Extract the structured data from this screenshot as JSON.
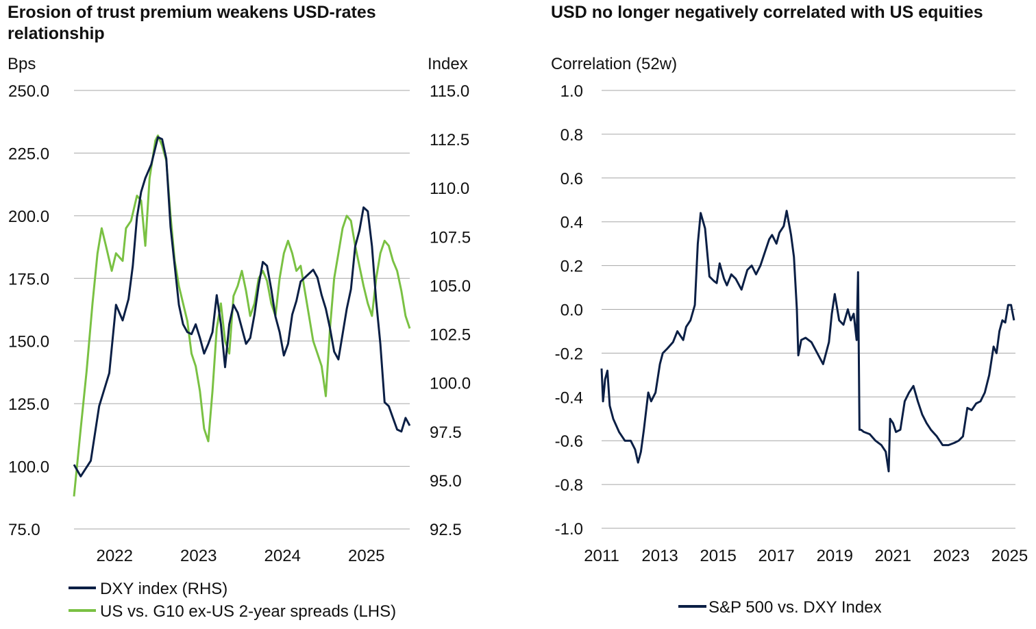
{
  "chart_data": [
    {
      "type": "line",
      "title": "Erosion of trust premium weakens USD-rates relationship",
      "left_axis_label": "Bps",
      "right_axis_label": "Index",
      "left_ylim": [
        75,
        250
      ],
      "right_ylim": [
        92.5,
        115
      ],
      "left_ticks": [
        "250.0",
        "225.0",
        "200.0",
        "175.0",
        "150.0",
        "125.0",
        "100.0",
        "75.0"
      ],
      "right_ticks": [
        "115.0",
        "112.5",
        "110.0",
        "107.5",
        "105.0",
        "102.5",
        "100.0",
        "97.5",
        "95.0",
        "92.5"
      ],
      "x_ticks": [
        "2022",
        "2023",
        "2024",
        "2025"
      ],
      "xlim": [
        2021.5,
        2025.5
      ],
      "grid": true,
      "legend_position": "bottom-left",
      "series": [
        {
          "name": "DXY index (RHS)",
          "axis": "right",
          "color": "#0b1f45",
          "x": [
            2021.5,
            2021.58,
            2021.7,
            2021.8,
            2021.92,
            2022.0,
            2022.08,
            2022.15,
            2022.2,
            2022.25,
            2022.3,
            2022.35,
            2022.42,
            2022.5,
            2022.55,
            2022.6,
            2022.65,
            2022.7,
            2022.75,
            2022.8,
            2022.85,
            2022.9,
            2022.95,
            2023.0,
            2023.05,
            2023.1,
            2023.15,
            2023.2,
            2023.25,
            2023.3,
            2023.35,
            2023.4,
            2023.45,
            2023.5,
            2023.55,
            2023.6,
            2023.65,
            2023.7,
            2023.75,
            2023.8,
            2023.85,
            2023.9,
            2023.95,
            2024.0,
            2024.05,
            2024.1,
            2024.15,
            2024.2,
            2024.25,
            2024.3,
            2024.35,
            2024.4,
            2024.45,
            2024.5,
            2024.55,
            2024.6,
            2024.65,
            2024.7,
            2024.75,
            2024.8,
            2024.85,
            2024.9,
            2024.95,
            2025.0,
            2025.05,
            2025.1,
            2025.15,
            2025.2,
            2025.25,
            2025.3,
            2025.35,
            2025.4,
            2025.45,
            2025.5
          ],
          "values": [
            95.8,
            95.2,
            96.0,
            98.8,
            100.5,
            104.0,
            103.2,
            104.3,
            106.0,
            108.5,
            109.8,
            110.5,
            111.2,
            112.6,
            112.5,
            111.5,
            108.0,
            106.0,
            104.0,
            103.0,
            102.6,
            102.5,
            103.0,
            102.3,
            101.5,
            102.0,
            102.6,
            104.5,
            103.0,
            100.8,
            103.0,
            104.0,
            103.6,
            102.8,
            102.0,
            102.3,
            103.5,
            105.0,
            106.2,
            106.0,
            104.8,
            103.4,
            102.6,
            101.4,
            102.0,
            103.5,
            104.2,
            105.2,
            105.4,
            105.6,
            105.8,
            105.4,
            104.5,
            103.8,
            102.8,
            101.6,
            101.2,
            102.5,
            103.8,
            104.8,
            107.0,
            107.8,
            109.0,
            108.8,
            107.0,
            104.2,
            102.0,
            99.0,
            98.8,
            98.2,
            97.6,
            97.5,
            98.2,
            97.8
          ]
        },
        {
          "name": "US vs. G10 ex-US 2-year spreads (LHS)",
          "axis": "left",
          "color": "#7ac143",
          "x": [
            2021.5,
            2021.58,
            2021.65,
            2021.72,
            2021.78,
            2021.83,
            2021.88,
            2021.95,
            2022.0,
            2022.08,
            2022.12,
            2022.18,
            2022.25,
            2022.3,
            2022.35,
            2022.4,
            2022.47,
            2022.5,
            2022.55,
            2022.6,
            2022.65,
            2022.7,
            2022.75,
            2022.8,
            2022.85,
            2022.9,
            2022.95,
            2023.0,
            2023.05,
            2023.1,
            2023.15,
            2023.2,
            2023.25,
            2023.3,
            2023.35,
            2023.4,
            2023.45,
            2023.5,
            2023.55,
            2023.6,
            2023.65,
            2023.7,
            2023.75,
            2023.8,
            2023.85,
            2023.9,
            2023.95,
            2024.0,
            2024.05,
            2024.1,
            2024.15,
            2024.2,
            2024.25,
            2024.3,
            2024.35,
            2024.4,
            2024.45,
            2024.5,
            2024.55,
            2024.6,
            2024.65,
            2024.7,
            2024.75,
            2024.8,
            2024.85,
            2024.9,
            2024.95,
            2025.0,
            2025.05,
            2025.1,
            2025.15,
            2025.2,
            2025.25,
            2025.3,
            2025.35,
            2025.4,
            2025.45,
            2025.5
          ],
          "values": [
            88,
            115,
            138,
            165,
            185,
            195,
            188,
            178,
            185,
            182,
            195,
            198,
            208,
            206,
            188,
            215,
            230,
            232,
            228,
            222,
            200,
            182,
            172,
            165,
            158,
            145,
            140,
            130,
            115,
            110,
            130,
            155,
            165,
            150,
            145,
            168,
            172,
            178,
            170,
            160,
            165,
            175,
            178,
            174,
            165,
            160,
            175,
            185,
            190,
            185,
            178,
            180,
            170,
            160,
            150,
            145,
            140,
            128,
            155,
            175,
            185,
            195,
            200,
            198,
            188,
            180,
            172,
            165,
            160,
            175,
            185,
            190,
            188,
            182,
            178,
            170,
            160,
            155
          ]
        }
      ]
    },
    {
      "type": "line",
      "title": "USD no longer negatively correlated with US equities",
      "ylabel": "Correlation (52w)",
      "ylim": [
        -1.0,
        1.0
      ],
      "y_ticks": [
        "1.0",
        "0.8",
        "0.6",
        "0.4",
        "0.2",
        "0.0",
        "-0.2",
        "-0.4",
        "-0.6",
        "-0.8",
        "-1.0"
      ],
      "x_ticks": [
        "2011",
        "2013",
        "2015",
        "2017",
        "2019",
        "2021",
        "2023",
        "2025"
      ],
      "xlim": [
        2011,
        2025.2
      ],
      "grid": true,
      "legend_position": "bottom-center",
      "series": [
        {
          "name": "S&P 500 vs. DXY Index",
          "color": "#0b1f45",
          "x": [
            2011.0,
            2011.05,
            2011.12,
            2011.2,
            2011.28,
            2011.4,
            2011.6,
            2011.8,
            2012.0,
            2012.15,
            2012.25,
            2012.35,
            2012.45,
            2012.6,
            2012.7,
            2012.85,
            2013.0,
            2013.1,
            2013.25,
            2013.45,
            2013.6,
            2013.8,
            2013.9,
            2014.05,
            2014.2,
            2014.3,
            2014.4,
            2014.55,
            2014.7,
            2014.85,
            2014.95,
            2015.05,
            2015.2,
            2015.3,
            2015.45,
            2015.6,
            2015.8,
            2016.0,
            2016.15,
            2016.3,
            2016.45,
            2016.6,
            2016.75,
            2016.85,
            2017.0,
            2017.1,
            2017.25,
            2017.35,
            2017.5,
            2017.6,
            2017.7,
            2017.75,
            2017.85,
            2018.0,
            2018.2,
            2018.4,
            2018.6,
            2018.8,
            2018.9,
            2019.0,
            2019.15,
            2019.3,
            2019.45,
            2019.55,
            2019.65,
            2019.75,
            2019.8,
            2019.85,
            2019.9,
            2020.0,
            2020.2,
            2020.4,
            2020.6,
            2020.75,
            2020.85,
            2020.9,
            2021.0,
            2021.1,
            2021.25,
            2021.4,
            2021.55,
            2021.7,
            2021.85,
            2022.0,
            2022.15,
            2022.3,
            2022.5,
            2022.7,
            2022.9,
            2023.1,
            2023.25,
            2023.4,
            2023.55,
            2023.7,
            2023.85,
            2024.0,
            2024.15,
            2024.3,
            2024.45,
            2024.55,
            2024.65,
            2024.75,
            2024.85,
            2024.95,
            2025.05,
            2025.15
          ],
          "values": [
            -0.27,
            -0.42,
            -0.32,
            -0.28,
            -0.44,
            -0.5,
            -0.56,
            -0.6,
            -0.6,
            -0.64,
            -0.7,
            -0.65,
            -0.55,
            -0.38,
            -0.42,
            -0.38,
            -0.25,
            -0.2,
            -0.18,
            -0.15,
            -0.1,
            -0.14,
            -0.08,
            -0.05,
            0.02,
            0.3,
            0.44,
            0.37,
            0.15,
            0.13,
            0.12,
            0.21,
            0.14,
            0.11,
            0.16,
            0.14,
            0.09,
            0.18,
            0.2,
            0.16,
            0.2,
            0.26,
            0.32,
            0.34,
            0.3,
            0.35,
            0.38,
            0.45,
            0.34,
            0.24,
            0.0,
            -0.21,
            -0.14,
            -0.13,
            -0.15,
            -0.2,
            -0.25,
            -0.15,
            -0.02,
            0.07,
            -0.05,
            -0.07,
            0.0,
            -0.05,
            -0.02,
            -0.14,
            0.17,
            -0.55,
            -0.55,
            -0.56,
            -0.57,
            -0.6,
            -0.62,
            -0.65,
            -0.74,
            -0.5,
            -0.52,
            -0.56,
            -0.55,
            -0.42,
            -0.38,
            -0.35,
            -0.42,
            -0.48,
            -0.52,
            -0.55,
            -0.58,
            -0.62,
            -0.62,
            -0.61,
            -0.6,
            -0.58,
            -0.45,
            -0.46,
            -0.43,
            -0.42,
            -0.38,
            -0.3,
            -0.17,
            -0.2,
            -0.1,
            -0.05,
            -0.06,
            0.02,
            0.02,
            -0.05
          ]
        }
      ]
    }
  ]
}
